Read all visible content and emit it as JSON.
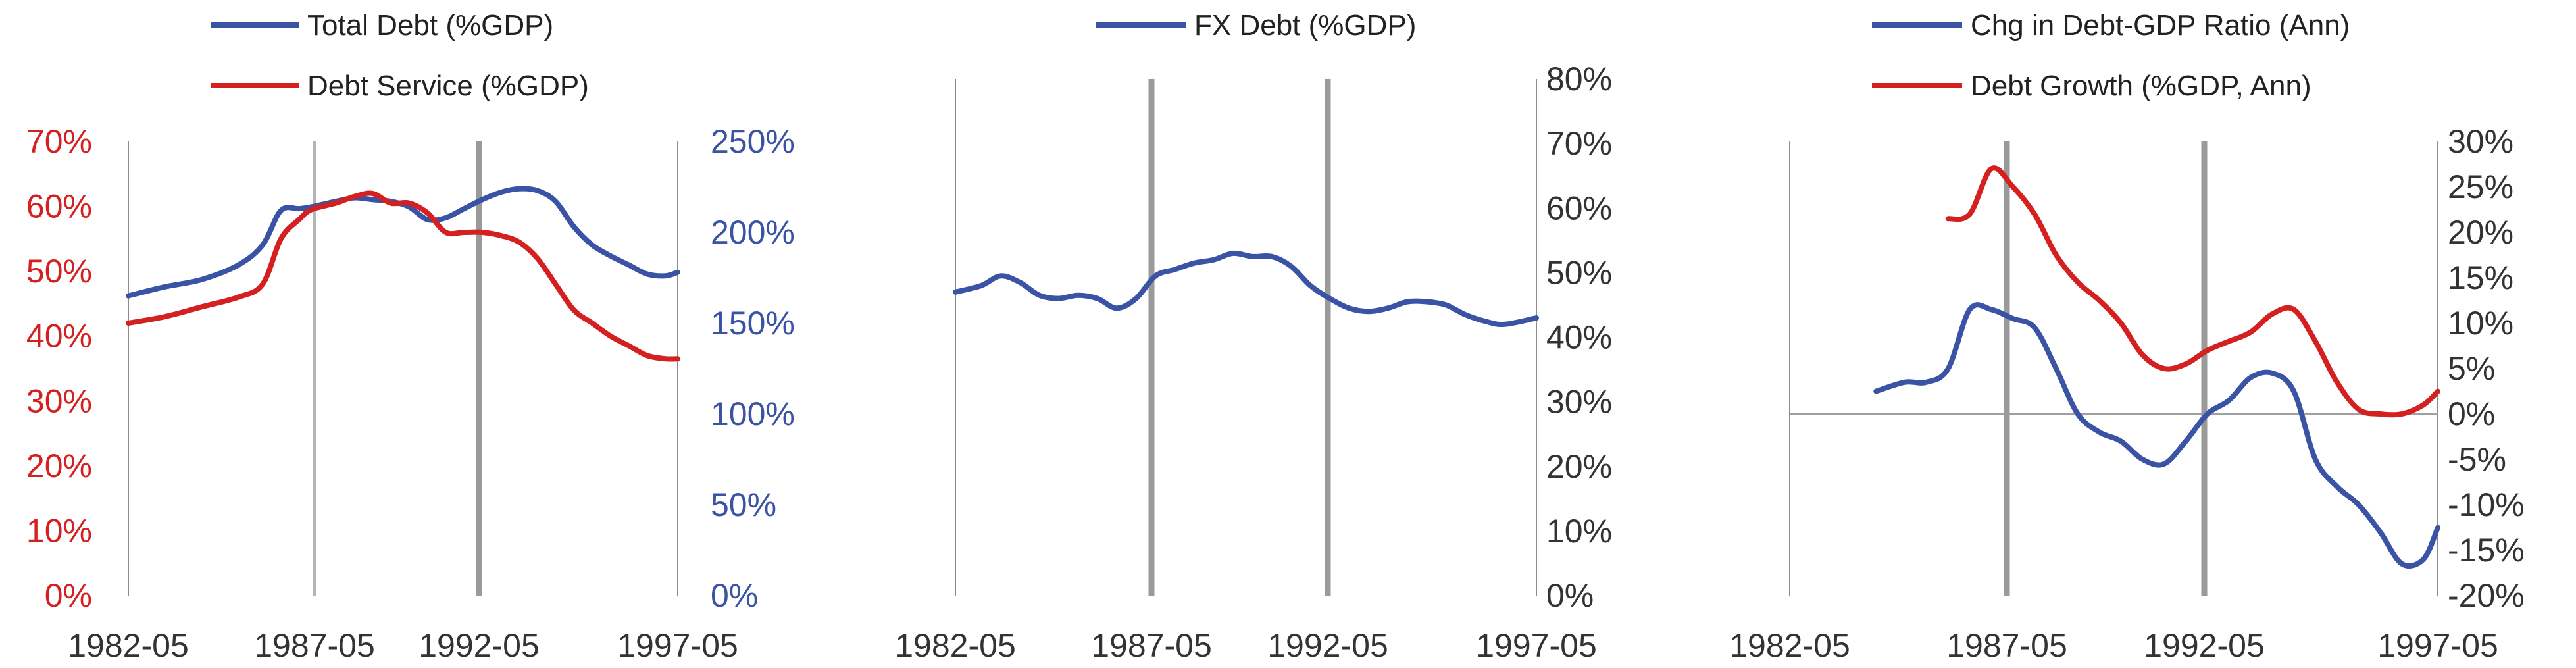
{
  "colors": {
    "blue": "#3a53a4",
    "red": "#d42020",
    "axis_dark": "#333333"
  },
  "chart_data": [
    {
      "type": "line",
      "title": "",
      "x_ticks": [
        "1982-05",
        "1987-05",
        "1992-05",
        "1997-05"
      ],
      "xlim": [
        "1982-05",
        "1997-05"
      ],
      "left_axis": {
        "ylim": [
          0,
          70
        ],
        "ticks": [
          "0%",
          "10%",
          "20%",
          "30%",
          "40%",
          "50%",
          "60%",
          "70%"
        ],
        "color": "#d42020"
      },
      "right_axis": {
        "ylim": [
          0,
          250
        ],
        "ticks": [
          "0%",
          "50%",
          "100%",
          "150%",
          "200%",
          "250%"
        ],
        "color": "#3a53a4"
      },
      "legend_placement": "top-left",
      "series": [
        {
          "name": "Total Debt (%GDP)",
          "axis": "right",
          "color": "#3a53a4",
          "x": [
            "1982-05",
            "1983-05",
            "1984-05",
            "1985-05",
            "1986-01",
            "1986-07",
            "1987-01",
            "1987-05",
            "1988-01",
            "1988-07",
            "1989-01",
            "1989-07",
            "1990-01",
            "1990-07",
            "1991-01",
            "1991-07",
            "1992-01",
            "1992-07",
            "1993-01",
            "1993-07",
            "1994-01",
            "1994-07",
            "1995-01",
            "1995-07",
            "1996-01",
            "1996-07",
            "1997-01",
            "1997-05"
          ],
          "y": [
            165,
            170,
            174,
            182,
            193,
            212,
            213,
            214,
            217,
            219,
            218,
            217,
            214,
            207,
            208,
            213,
            218,
            222,
            224,
            223,
            217,
            203,
            193,
            187,
            182,
            177,
            176,
            178
          ]
        },
        {
          "name": "Debt Service (%GDP)",
          "axis": "left",
          "color": "#d42020",
          "x": [
            "1982-05",
            "1983-05",
            "1984-05",
            "1985-05",
            "1986-01",
            "1986-07",
            "1987-01",
            "1987-05",
            "1988-01",
            "1988-07",
            "1989-01",
            "1989-07",
            "1990-01",
            "1990-07",
            "1991-01",
            "1991-07",
            "1992-01",
            "1992-07",
            "1993-01",
            "1993-07",
            "1994-01",
            "1994-07",
            "1995-01",
            "1995-07",
            "1996-01",
            "1996-07",
            "1997-01",
            "1997-05"
          ],
          "y": [
            42,
            43,
            44.5,
            46,
            48,
            55,
            58,
            59.5,
            60.5,
            61.5,
            62,
            60.5,
            60.5,
            59,
            56,
            56,
            56,
            55.5,
            54.5,
            52,
            48,
            44,
            42,
            40,
            38.5,
            37,
            36.5,
            36.5
          ]
        }
      ]
    },
    {
      "type": "line",
      "title": "",
      "x_ticks": [
        "1982-05",
        "1987-05",
        "1992-05",
        "1997-05"
      ],
      "xlim": [
        "1982-05",
        "1997-05"
      ],
      "right_axis": {
        "ylim": [
          0,
          80
        ],
        "ticks": [
          "0%",
          "10%",
          "20%",
          "30%",
          "40%",
          "50%",
          "60%",
          "70%",
          "80%"
        ],
        "color": "#333333"
      },
      "legend_placement": "top-center",
      "series": [
        {
          "name": "FX Debt (%GDP)",
          "axis": "right",
          "color": "#3a53a4",
          "x": [
            "1982-05",
            "1983-01",
            "1983-07",
            "1984-01",
            "1984-07",
            "1985-01",
            "1985-07",
            "1986-01",
            "1986-07",
            "1987-01",
            "1987-07",
            "1988-01",
            "1988-07",
            "1989-01",
            "1989-07",
            "1990-01",
            "1990-07",
            "1991-01",
            "1991-07",
            "1992-01",
            "1992-07",
            "1993-01",
            "1993-07",
            "1994-01",
            "1994-07",
            "1995-01",
            "1995-07",
            "1996-01",
            "1996-07",
            "1997-05"
          ],
          "y": [
            47,
            48,
            49.5,
            48.5,
            46.5,
            46,
            46.5,
            46,
            44.5,
            46,
            49.5,
            50.5,
            51.5,
            52,
            53,
            52.5,
            52.5,
            51,
            48,
            46,
            44.5,
            44,
            44.5,
            45.5,
            45.5,
            45,
            43.5,
            42.5,
            42,
            43
          ]
        }
      ]
    },
    {
      "type": "line",
      "title": "",
      "x_ticks": [
        "1982-05",
        "1987-05",
        "1992-05",
        "1997-05"
      ],
      "xlim": [
        "1982-05",
        "1997-05"
      ],
      "right_axis": {
        "ylim": [
          -20,
          30
        ],
        "ticks": [
          "-20%",
          "-15%",
          "-10%",
          "-5%",
          "0%",
          "5%",
          "10%",
          "15%",
          "20%",
          "25%",
          "30%"
        ],
        "color": "#333333"
      },
      "legend_placement": "top-left",
      "series": [
        {
          "name": "Chg in Debt-GDP Ratio (Ann)",
          "axis": "right",
          "color": "#3a53a4",
          "x": [
            "1984-05",
            "1985-01",
            "1985-07",
            "1986-01",
            "1986-07",
            "1987-01",
            "1987-07",
            "1988-01",
            "1988-07",
            "1989-01",
            "1989-07",
            "1990-01",
            "1990-07",
            "1991-01",
            "1991-07",
            "1992-01",
            "1992-07",
            "1993-01",
            "1993-07",
            "1994-01",
            "1994-07",
            "1995-01",
            "1995-07",
            "1996-01",
            "1996-07",
            "1997-01",
            "1997-05"
          ],
          "y": [
            2.5,
            3.5,
            3.5,
            5,
            11.5,
            11.5,
            10.5,
            9.5,
            5,
            0,
            -2,
            -3,
            -5,
            -5.5,
            -3,
            0,
            1.5,
            4,
            4.5,
            2.5,
            -5,
            -8,
            -10,
            -13,
            -16.5,
            -16,
            -12.5
          ]
        },
        {
          "name": "Debt Growth (%GDP, Ann)",
          "axis": "right",
          "color": "#d42020",
          "x": [
            "1986-01",
            "1986-07",
            "1987-01",
            "1987-07",
            "1988-01",
            "1988-07",
            "1989-01",
            "1989-07",
            "1990-01",
            "1990-07",
            "1991-01",
            "1991-07",
            "1992-01",
            "1992-07",
            "1993-01",
            "1993-07",
            "1994-01",
            "1994-07",
            "1995-01",
            "1995-07",
            "1996-01",
            "1996-07",
            "1997-01",
            "1997-05"
          ],
          "y": [
            21.5,
            22,
            27,
            25,
            22,
            17.5,
            14.5,
            12.5,
            10,
            6.5,
            5,
            5.5,
            7,
            8,
            9,
            11,
            11.5,
            8,
            3.5,
            0.5,
            0,
            0,
            1,
            2.5
          ]
        }
      ]
    }
  ]
}
